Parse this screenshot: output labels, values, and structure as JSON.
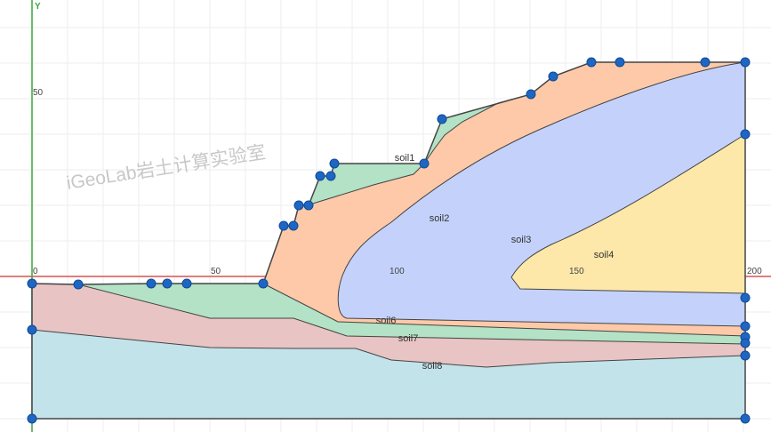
{
  "axes": {
    "y_label": "Y",
    "x_ticks": [
      "0",
      "50",
      "100",
      "150",
      "200"
    ],
    "y_ticks": [
      "50"
    ]
  },
  "watermark": "iGeoLab岩土计算实验室",
  "soils": [
    {
      "label": "soil1"
    },
    {
      "label": "soil2"
    },
    {
      "label": "soil3"
    },
    {
      "label": "soil4"
    },
    {
      "label": "soil6"
    },
    {
      "label": "soil7"
    },
    {
      "label": "soil8"
    }
  ]
}
